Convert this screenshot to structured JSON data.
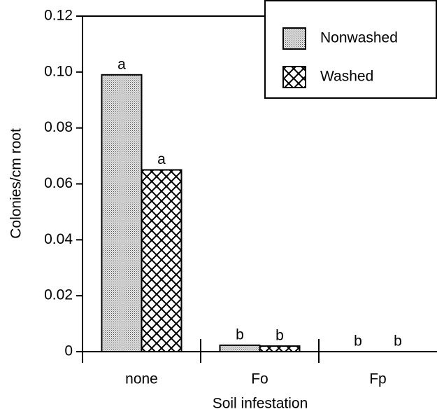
{
  "chart_data": {
    "type": "bar",
    "x_label": "Soil infestation",
    "y_label": "Colonies/cm root",
    "categories": [
      "none",
      "Fo",
      "Fp"
    ],
    "series": [
      {
        "name": "Nonwashed",
        "pattern": "stipple",
        "values": [
          0.099,
          0.0023,
          0
        ],
        "letters": [
          "a",
          "b",
          "b"
        ]
      },
      {
        "name": "Washed",
        "pattern": "crosshatch",
        "values": [
          0.065,
          0.002,
          0
        ],
        "letters": [
          "a",
          "b",
          "b"
        ]
      }
    ],
    "ylim": [
      0,
      0.12
    ],
    "yticks": [
      0,
      0.02,
      0.04,
      0.06,
      0.08,
      {
        "value": 0.1,
        "label": "0.10"
      },
      0.12
    ],
    "legend": "upper right"
  }
}
